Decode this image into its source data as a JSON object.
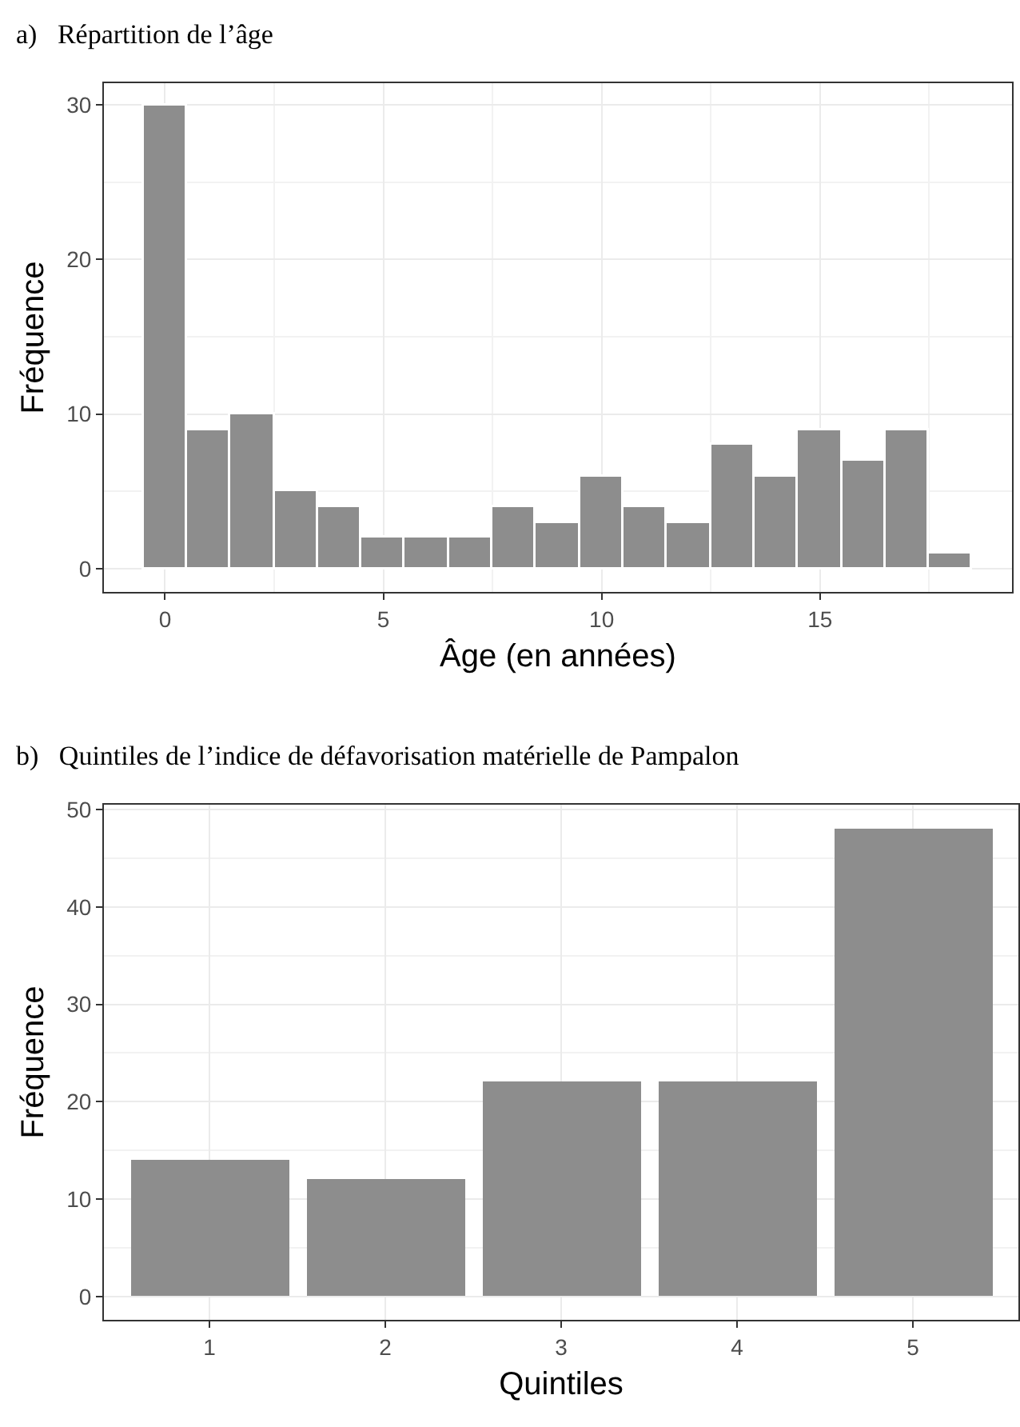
{
  "chart_data": [
    {
      "type": "histogram",
      "title": "a)   Répartition de l’âge",
      "xlabel": "Âge (en années)",
      "ylabel": "Fréquence",
      "color": "#8d8d8d",
      "grid": true,
      "bins": [
        -0.5,
        0.5,
        1.5,
        2.5,
        3.5,
        4.5,
        5.5,
        6.5,
        7.5,
        8.5,
        9.5,
        10.5,
        11.5,
        12.5,
        13.5,
        14.5,
        15.5,
        16.5,
        17.5,
        18.5
      ],
      "values": [
        30,
        9,
        10,
        5,
        4,
        2,
        2,
        2,
        4,
        3,
        6,
        4,
        3,
        8,
        6,
        9,
        7,
        9,
        1
      ],
      "xlim": [
        -1.4,
        19.4
      ],
      "xticks": [
        0,
        5,
        10,
        15
      ],
      "ylim": [
        -1.5,
        31.4
      ],
      "yticks": [
        0,
        10,
        20,
        30
      ]
    },
    {
      "type": "bar",
      "title": "b)   Quintiles de l’indice de défavorisation matérielle de Pampalon",
      "xlabel": "Quintiles",
      "ylabel": "Fréquence",
      "color": "#8d8d8d",
      "grid": true,
      "categories": [
        "1",
        "2",
        "3",
        "4",
        "5"
      ],
      "values": [
        14,
        12,
        22,
        22,
        48
      ],
      "ylim": [
        -2.4,
        50.5
      ],
      "yticks": [
        0,
        10,
        20,
        30,
        40,
        50
      ]
    }
  ]
}
